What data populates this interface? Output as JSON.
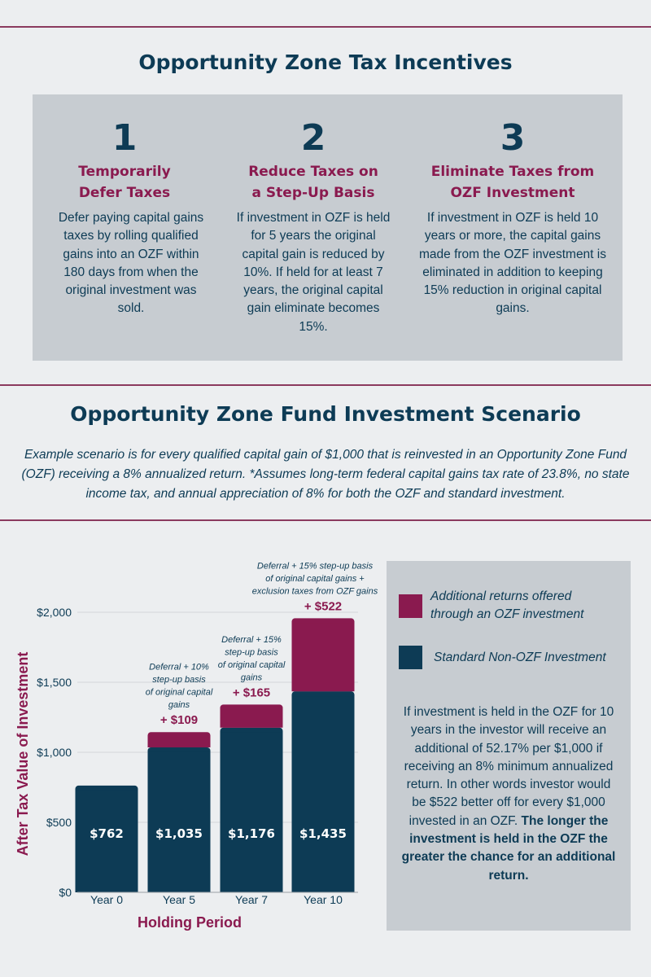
{
  "header": {
    "title": "Opportunity Zone Tax Incentives"
  },
  "incentives": [
    {
      "number": "1",
      "title_line1": "Temporarily",
      "title_line2": "Defer Taxes",
      "body": "Defer paying capital gains taxes by rolling qualified gains into an OZF within 180 days from when the original investment was sold."
    },
    {
      "number": "2",
      "title_line1": "Reduce Taxes on",
      "title_line2": "a Step-Up Basis",
      "body": "If investment in OZF is held for 5 years the original capital gain is reduced by 10%. If held for at least 7 years, the original capital gain eliminate becomes 15%."
    },
    {
      "number": "3",
      "title_line1": "Eliminate Taxes from",
      "title_line2": "OZF Investment",
      "body": "If investment in OZF is held 10 years or more, the capital gains made from the OZF investment is eliminated in addition to keeping 15% reduction in original capital gains."
    }
  ],
  "scenario": {
    "title": "Opportunity Zone Fund Investment Scenario",
    "intro": "Example scenario is for every qualified capital gain of $1,000 that is reinvested in an Opportunity Zone Fund (OZF) receiving a 8% annualized return. *Assumes long-term federal capital gains tax rate of 23.8%, no state income tax, and annual appreciation of 8% for both the OZF and standard investment."
  },
  "colors": {
    "navy": "#0d3b55",
    "maroon": "#8a1a4f",
    "panel": "#c7ccd1",
    "rule": "#8b3a5e"
  },
  "legend": {
    "additional": "Additional returns offered through an OZF investment",
    "standard": "Standard Non-OZF Investment",
    "note_plain": "If investment is held in the OZF for 10 years in the investor will receive an additional of 52.17% per $1,000 if receiving an 8% minimum annualized return. In other words investor would be $522 better off for every $1,000 invested in an OZF.",
    "note_bold": "The longer the investment is held in the OZF the greater the chance for an additional return."
  },
  "chart_data": {
    "type": "bar",
    "stacked": true,
    "categories": [
      "Year 0",
      "Year 5",
      "Year 7",
      "Year 10"
    ],
    "series": [
      {
        "name": "Standard Non-OZF Investment",
        "values": [
          762,
          1035,
          1176,
          1435
        ],
        "color": "#0d3b55"
      },
      {
        "name": "Additional returns offered through an OZF investment",
        "values": [
          0,
          109,
          165,
          522
        ],
        "color": "#8a1a4f"
      }
    ],
    "base_labels": [
      "$762",
      "$1,035",
      "$1,176",
      "$1,435"
    ],
    "extra_labels": [
      "",
      "+ $109",
      "+ $165",
      "+ $522"
    ],
    "annotations": [
      [],
      [
        "Deferral + 10%",
        "step-up basis",
        "of original capital",
        "gains"
      ],
      [
        "Deferral + 15%",
        "step-up basis",
        "of original capital",
        "gains"
      ],
      [
        "Deferral + 15% step-up basis",
        "of original capital gains +",
        "exclusion taxes from OZF gains"
      ]
    ],
    "ylim": [
      0,
      2000
    ],
    "yticks": [
      0,
      500,
      1000,
      1500,
      2000
    ],
    "ytick_labels": [
      "$0",
      "$500",
      "$1,000",
      "$1,500",
      "$2,000"
    ],
    "xlabel": "Holding Period",
    "ylabel": "After Tax Value of Investment",
    "grid": true
  }
}
